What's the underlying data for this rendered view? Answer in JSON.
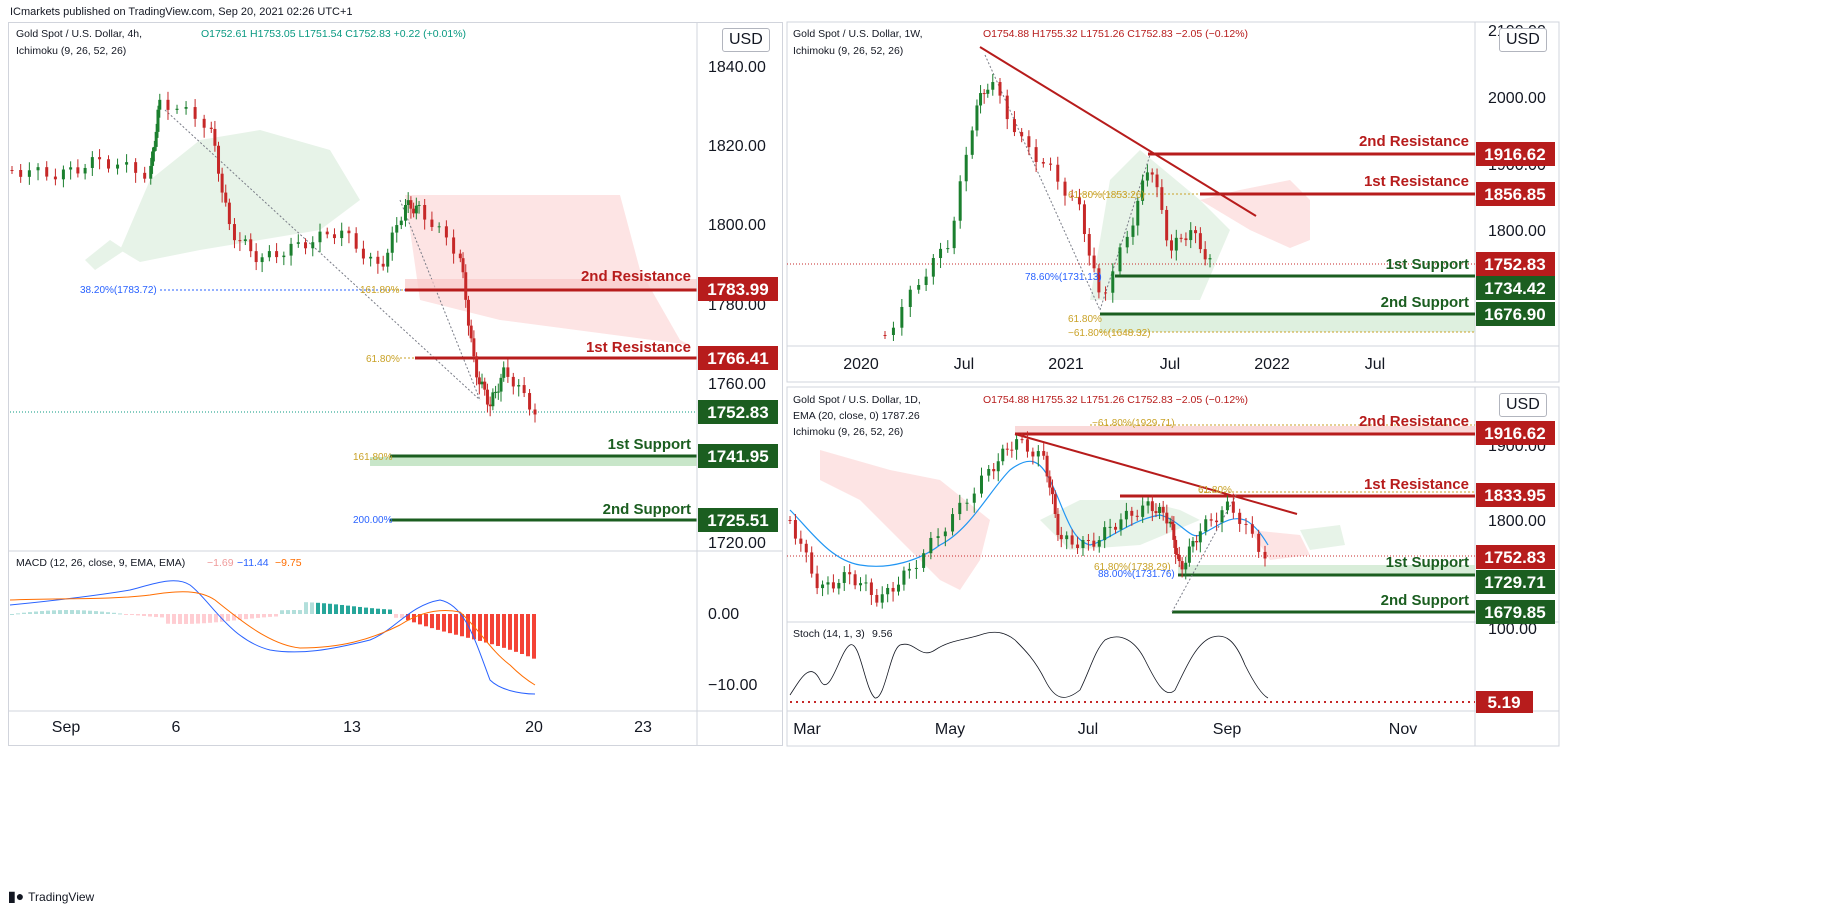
{
  "header": {
    "published": "ICmarkets published on TradingView.com, Sep 20, 2021 02:26 UTC+1"
  },
  "footer": {
    "brand": "TradingView",
    "logo": "tradingview-logo-icon"
  },
  "colors": {
    "resistance": "#b71c1c",
    "support": "#1b5e20",
    "up": "#1b7f2e",
    "down": "#c62828",
    "cloud_green": "#e7f3e8",
    "cloud_red": "#fde4e4",
    "macd_line": "#2962ff",
    "signal_line": "#ff6d00"
  },
  "charts": [
    {
      "id": "4h",
      "legend": {
        "line1": "Gold Spot / U.S. Dollar, 4h,",
        "ohlc": "O1752.61  H1753.05  L1751.54  C1752.83  +0.22 (+0.01%)",
        "line2": "Ichimoku (9, 26, 52, 26)"
      },
      "currency": "USD",
      "y_ticks": [
        "1840.00",
        "1820.00",
        "1800.00",
        "1780.00",
        "1760.00",
        "1720.00"
      ],
      "x_ticks": [
        "Sep",
        "6",
        "13",
        "20",
        "23"
      ],
      "levels": [
        {
          "name": "2nd Resistance",
          "value": "1783.99",
          "kind": "res"
        },
        {
          "name": "1st Resistance",
          "value": "1766.41",
          "kind": "res"
        },
        {
          "name": "last",
          "value": "1752.83",
          "kind": "sup"
        },
        {
          "name": "1st Support",
          "value": "1741.95",
          "kind": "sup"
        },
        {
          "name": "2nd Support",
          "value": "1725.51",
          "kind": "sup"
        }
      ],
      "fib_labels": [
        "38.20%(1783.72)",
        "161.80%",
        "61.80%",
        "161.80%",
        "200.00%"
      ],
      "macd": {
        "legend": "MACD (12, 26, close, 9, EMA, EMA)",
        "values": [
          "−1.69",
          "−11.44",
          "−9.75"
        ],
        "ticks": [
          "0.00",
          "−10.00"
        ]
      }
    },
    {
      "id": "1w",
      "legend": {
        "line1": "Gold Spot / U.S. Dollar, 1W,",
        "ohlc": "O1754.88  H1755.32  L1751.26  C1752.83  −2.05 (−0.12%)",
        "line2": "Ichimoku (9, 26, 52, 26)"
      },
      "currency": "USD",
      "y_ticks": [
        "2100.00",
        "2000.00",
        "1900.00",
        "1800.00"
      ],
      "x_ticks": [
        "2020",
        "Jul",
        "2021",
        "Jul",
        "2022",
        "Jul"
      ],
      "levels": [
        {
          "name": "2nd Resistance",
          "value": "1916.62",
          "kind": "res"
        },
        {
          "name": "1st Resistance",
          "value": "1856.85",
          "kind": "res"
        },
        {
          "name": "1st Support",
          "value": "1752.83",
          "kind": "res"
        },
        {
          "name": "",
          "value": "1734.42",
          "kind": "sup"
        },
        {
          "name": "2nd Support",
          "value": "1676.90",
          "kind": "sup"
        }
      ],
      "fib_labels": [
        "61.80%(1853.26)",
        "78.60%(1731.13)",
        "61.80%",
        "−61.80%(1648.32)"
      ]
    },
    {
      "id": "1d",
      "legend": {
        "line1": "Gold Spot / U.S. Dollar, 1D,",
        "ohlc": "O1754.88  H1755.32  L1751.26  C1752.83  −2.05 (−0.12%)",
        "line2": "EMA (20, close, 0)  1787.26",
        "line3": "Ichimoku (9, 26, 52, 26)"
      },
      "currency": "USD",
      "y_ticks": [
        "1900.00",
        "1800.00",
        "100.00"
      ],
      "x_ticks": [
        "Mar",
        "May",
        "Jul",
        "Sep",
        "Nov"
      ],
      "levels": [
        {
          "name": "2nd Resistance",
          "value": "1916.62",
          "kind": "res"
        },
        {
          "name": "1st Resistance",
          "value": "1833.95",
          "kind": "res"
        },
        {
          "name": "1st Support",
          "value": "1752.83",
          "kind": "res"
        },
        {
          "name": "",
          "value": "1729.71",
          "kind": "sup"
        },
        {
          "name": "2nd Support",
          "value": "1679.85",
          "kind": "sup"
        }
      ],
      "fib_labels": [
        "−61.80%(1929.71)",
        "61.80%",
        "61.80%(1738.29)",
        "88.00%(1731.76)"
      ],
      "stoch": {
        "legend": "Stoch (14, 1, 3)",
        "value": "9.56",
        "last": "5.19"
      }
    }
  ]
}
